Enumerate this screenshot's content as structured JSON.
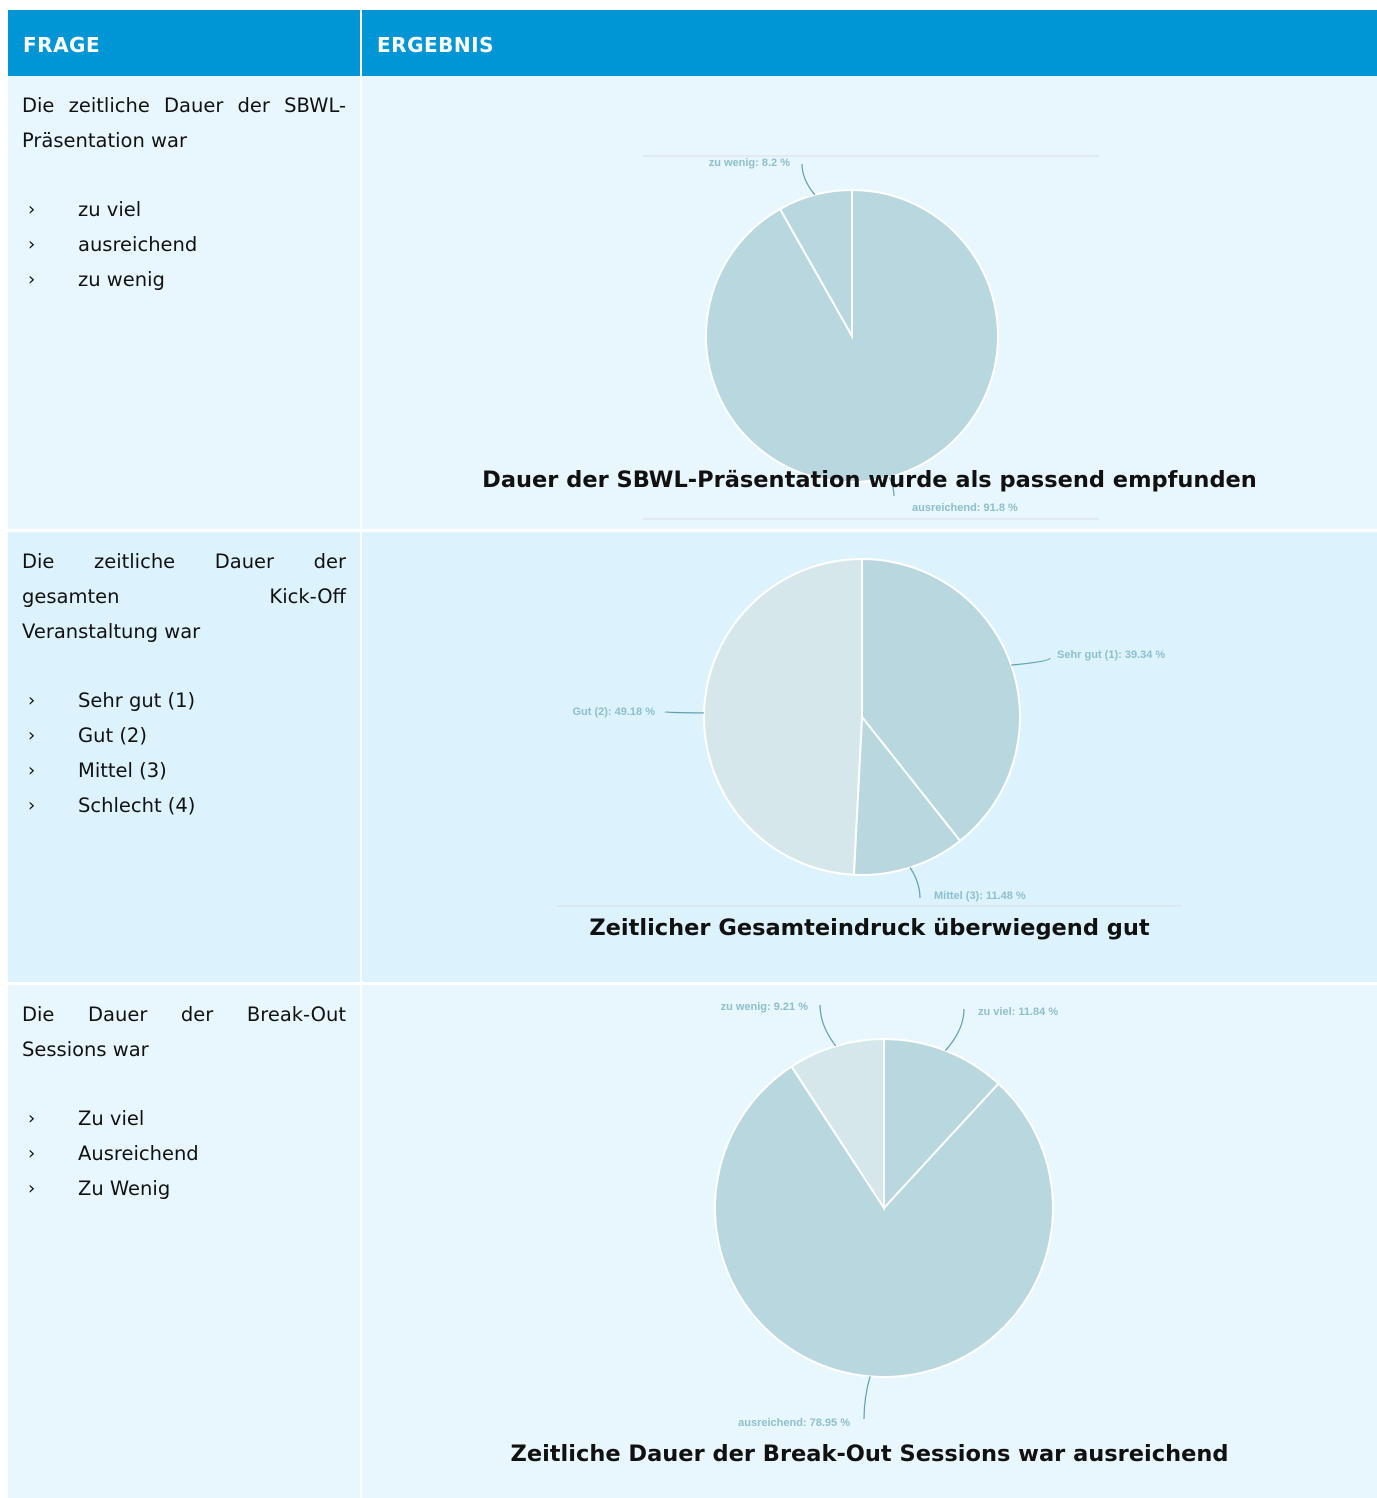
{
  "header": {
    "col_question": "FRAGE",
    "col_result": "ERGEBNIS"
  },
  "rows": [
    {
      "question_lines": [
        "Die zeitliche Dauer der SBWL-",
        "Präsentation war"
      ],
      "options": [
        "zu viel",
        "ausreichend",
        "zu wenig"
      ],
      "caption": "Dauer der SBWL-Präsentation wurde als passend empfunden"
    },
    {
      "question_lines": [
        "Die zeitliche Dauer der",
        "gesamten Kick-Off",
        "Veranstaltung war"
      ],
      "options": [
        "Sehr gut (1)",
        "Gut (2)",
        "Mittel (3)",
        "Schlecht (4)"
      ],
      "caption": "Zeitlicher Gesamteindruck überwiegend gut"
    },
    {
      "question_lines": [
        "Die Dauer der Break-Out",
        "Sessions war"
      ],
      "options": [
        "Zu viel",
        "Ausreichend",
        "Zu Wenig"
      ],
      "caption": "Zeitliche Dauer der Break-Out Sessions war ausreichend"
    }
  ],
  "bullet_glyph": "›",
  "chart_data": [
    {
      "type": "pie",
      "labels": [
        "ausreichend",
        "zu wenig"
      ],
      "values": [
        91.8,
        8.2
      ],
      "slice_labels": [
        "ausreichend: 91.8 %",
        "zu wenig: 8.2 %"
      ],
      "colors": [
        "#b9d7de",
        "#b9d7de"
      ]
    },
    {
      "type": "pie",
      "labels": [
        "Sehr gut (1)",
        "Mittel (3)",
        "Gut (2)"
      ],
      "values": [
        39.34,
        11.48,
        49.18
      ],
      "slice_labels": [
        "Sehr gut (1): 39.34 %",
        "Mittel (3): 11.48 %",
        "Gut (2): 49.18 %"
      ],
      "colors": [
        "#b9d7de",
        "#b9d7de",
        "#d6e7eb"
      ]
    },
    {
      "type": "pie",
      "labels": [
        "zu viel",
        "ausreichend",
        "zu wenig"
      ],
      "values": [
        11.84,
        78.95,
        9.21
      ],
      "slice_labels": [
        "zu viel: 11.84 %",
        "ausreichend: 78.95 %",
        "zu wenig: 9.21 %"
      ],
      "colors": [
        "#b9d7de",
        "#b9d7de",
        "#d6e7eb"
      ]
    }
  ]
}
